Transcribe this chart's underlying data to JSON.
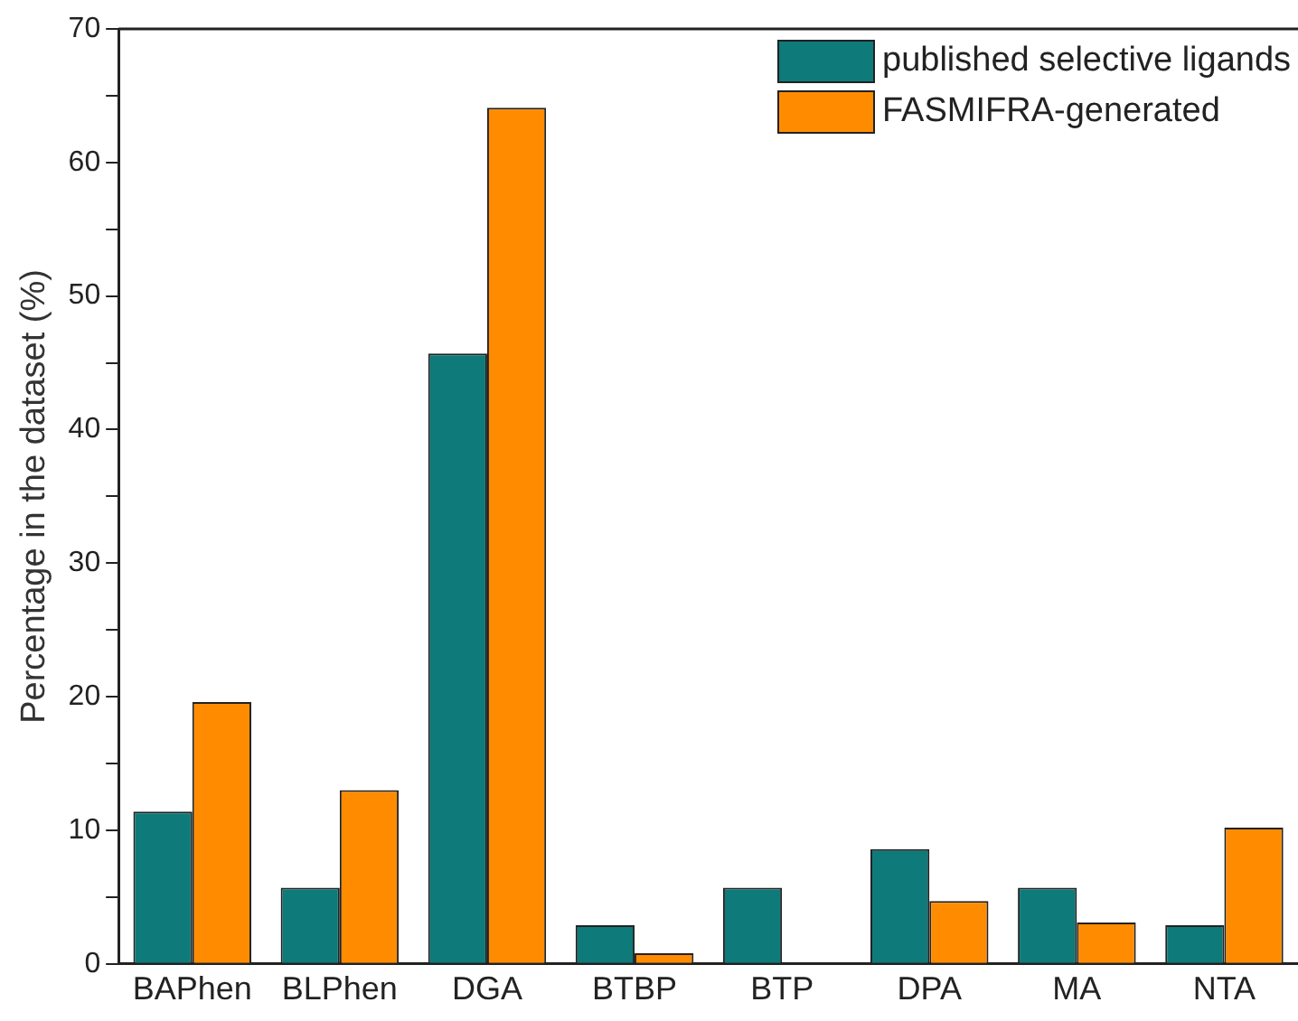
{
  "chart_data": {
    "type": "bar",
    "ylabel": "Percentage in the dataset (%)",
    "categories": [
      "BAPhen",
      "BLPhen",
      "DGA",
      "BTBP",
      "BTP",
      "DPA",
      "MA",
      "NTA"
    ],
    "series": [
      {
        "name": "published selective ligands",
        "color": "#0e7a7a",
        "values": [
          11.4,
          5.7,
          45.7,
          2.9,
          5.7,
          8.6,
          5.7,
          2.9
        ]
      },
      {
        "name": "FASMIFRA-generated",
        "color": "#ff8c00",
        "values": [
          19.6,
          13.0,
          64.1,
          0.8,
          0,
          4.7,
          3.1,
          10.2
        ]
      }
    ],
    "ylim": [
      0,
      70
    ],
    "yticks": [
      0,
      {
        "value": 5,
        "label": null
      },
      10,
      {
        "value": 15,
        "label": null
      },
      20,
      {
        "value": 25,
        "label": null
      },
      30,
      {
        "value": 35,
        "label": null
      },
      40,
      {
        "value": 45,
        "label": null
      },
      50,
      {
        "value": 55,
        "label": null
      },
      60,
      {
        "value": 65,
        "label": null
      },
      70
    ],
    "grid": false,
    "legend": "top right"
  }
}
